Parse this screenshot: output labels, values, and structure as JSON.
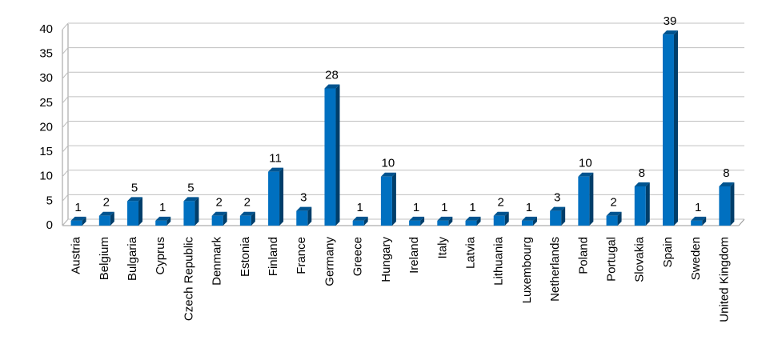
{
  "chart_data": {
    "type": "bar3d",
    "categories": [
      "Austria",
      "Belgium",
      "Bulgaria",
      "Cyprus",
      "Czech Republic",
      "Denmark",
      "Estonia",
      "Finland",
      "France",
      "Germany",
      "Greece",
      "Hungary",
      "Ireland",
      "Italy",
      "Latvia",
      "Lithuania",
      "Luxembourg",
      "Netherlands",
      "Poland",
      "Portugal",
      "Slovakia",
      "Spain",
      "Sweden",
      "United Kingdom"
    ],
    "values": [
      1,
      2,
      5,
      1,
      5,
      2,
      2,
      11,
      3,
      28,
      1,
      10,
      1,
      1,
      1,
      2,
      1,
      3,
      10,
      2,
      8,
      39,
      1,
      8
    ],
    "color": "#0070c0",
    "ylim": [
      0,
      40
    ],
    "yticks": [
      0,
      5,
      10,
      15,
      20,
      25,
      30,
      35,
      40
    ],
    "grid": true
  }
}
